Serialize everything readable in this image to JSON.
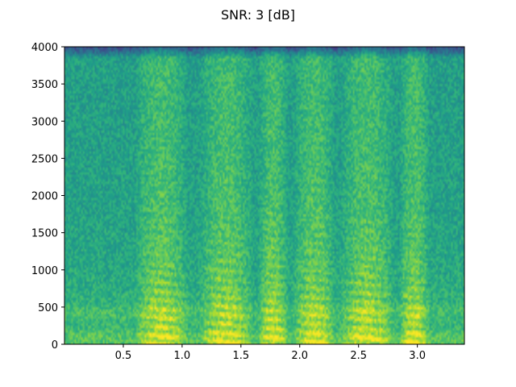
{
  "chart_data": {
    "type": "heatmap",
    "title": "SNR: 3 [dB]",
    "xlabel": "",
    "ylabel": "",
    "xlim": [
      0.0,
      3.4
    ],
    "ylim": [
      0,
      4000
    ],
    "x_ticks": [
      0.5,
      1.0,
      1.5,
      2.0,
      2.5,
      3.0
    ],
    "x_tick_labels": [
      "0.5",
      "1.0",
      "1.5",
      "2.0",
      "2.5",
      "3.0"
    ],
    "y_ticks": [
      0,
      500,
      1000,
      1500,
      2000,
      2500,
      3000,
      3500,
      4000
    ],
    "y_tick_labels": [
      "0",
      "500",
      "1000",
      "1500",
      "2000",
      "2500",
      "3000",
      "3500",
      "4000"
    ],
    "colormap": "viridis",
    "grid": false,
    "legend": "none",
    "speech_segments": [
      {
        "start": 0.6,
        "end": 1.05
      },
      {
        "start": 1.15,
        "end": 1.6
      },
      {
        "start": 1.65,
        "end": 1.9
      },
      {
        "start": 1.95,
        "end": 2.3
      },
      {
        "start": 2.35,
        "end": 2.8
      },
      {
        "start": 2.85,
        "end": 3.1
      }
    ],
    "noise_floor_top_hz": 3850
  }
}
